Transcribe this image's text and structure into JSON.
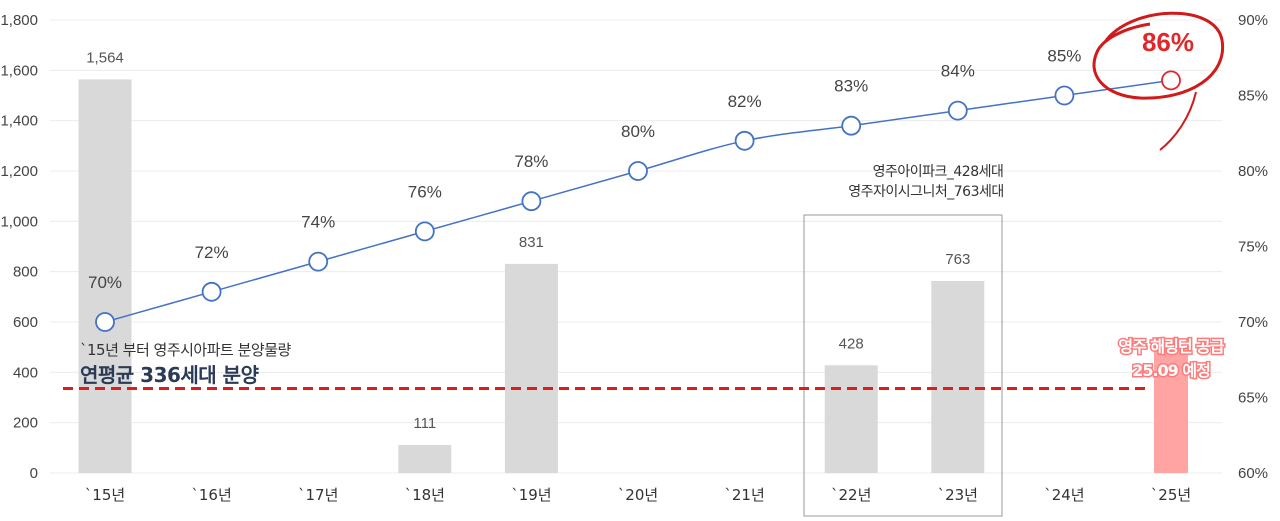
{
  "chart_data": {
    "type": "bar+line",
    "categories": [
      "`15년",
      "`16년",
      "`17년",
      "`18년",
      "`19년",
      "`20년",
      "`21년",
      "`22년",
      "`23년",
      "`24년",
      "`25년"
    ],
    "series": [
      {
        "type": "bar",
        "values": [
          1564,
          null,
          null,
          111,
          831,
          null,
          null,
          428,
          763,
          null,
          500
        ],
        "value_labels": [
          "1,564",
          "",
          "",
          "111",
          "831",
          "",
          "",
          "428",
          "763",
          "",
          ""
        ],
        "color": "#d9d9d9",
        "highlight_color": "#ffa3a3"
      },
      {
        "type": "line",
        "values": [
          70,
          72,
          74,
          76,
          78,
          80,
          82,
          83,
          84,
          85,
          86
        ],
        "labels": [
          "70%",
          "72%",
          "74%",
          "76%",
          "78%",
          "80%",
          "82%",
          "83%",
          "84%",
          "85%",
          "86%"
        ],
        "color": "#4472c4",
        "highlight_color": "#e0282b"
      }
    ],
    "y_left": {
      "min": 0,
      "max": 1800,
      "ticks": [
        "0",
        "200",
        "400",
        "600",
        "800",
        "1,000",
        "1,200",
        "1,400",
        "1,600",
        "1,800"
      ]
    },
    "y_right": {
      "min": 60,
      "max": 90,
      "ticks": [
        "60%",
        "65%",
        "70%",
        "75%",
        "80%",
        "85%",
        "90%"
      ]
    },
    "reference_line": {
      "value": 336,
      "color": "#d91e1e"
    },
    "grid": true
  },
  "annotations": {
    "avg_line1": "`15년 부터 영주시아파트 분양물량",
    "avg_line2": "연평균 336세대 분양",
    "box_line1": "영주아이파크_428세대",
    "box_line2": "영주자이시그니처_763세대",
    "supply_line1": "영주 해링턴 공급",
    "supply_line2": "25.09 예정",
    "highlight_value": "86%"
  }
}
